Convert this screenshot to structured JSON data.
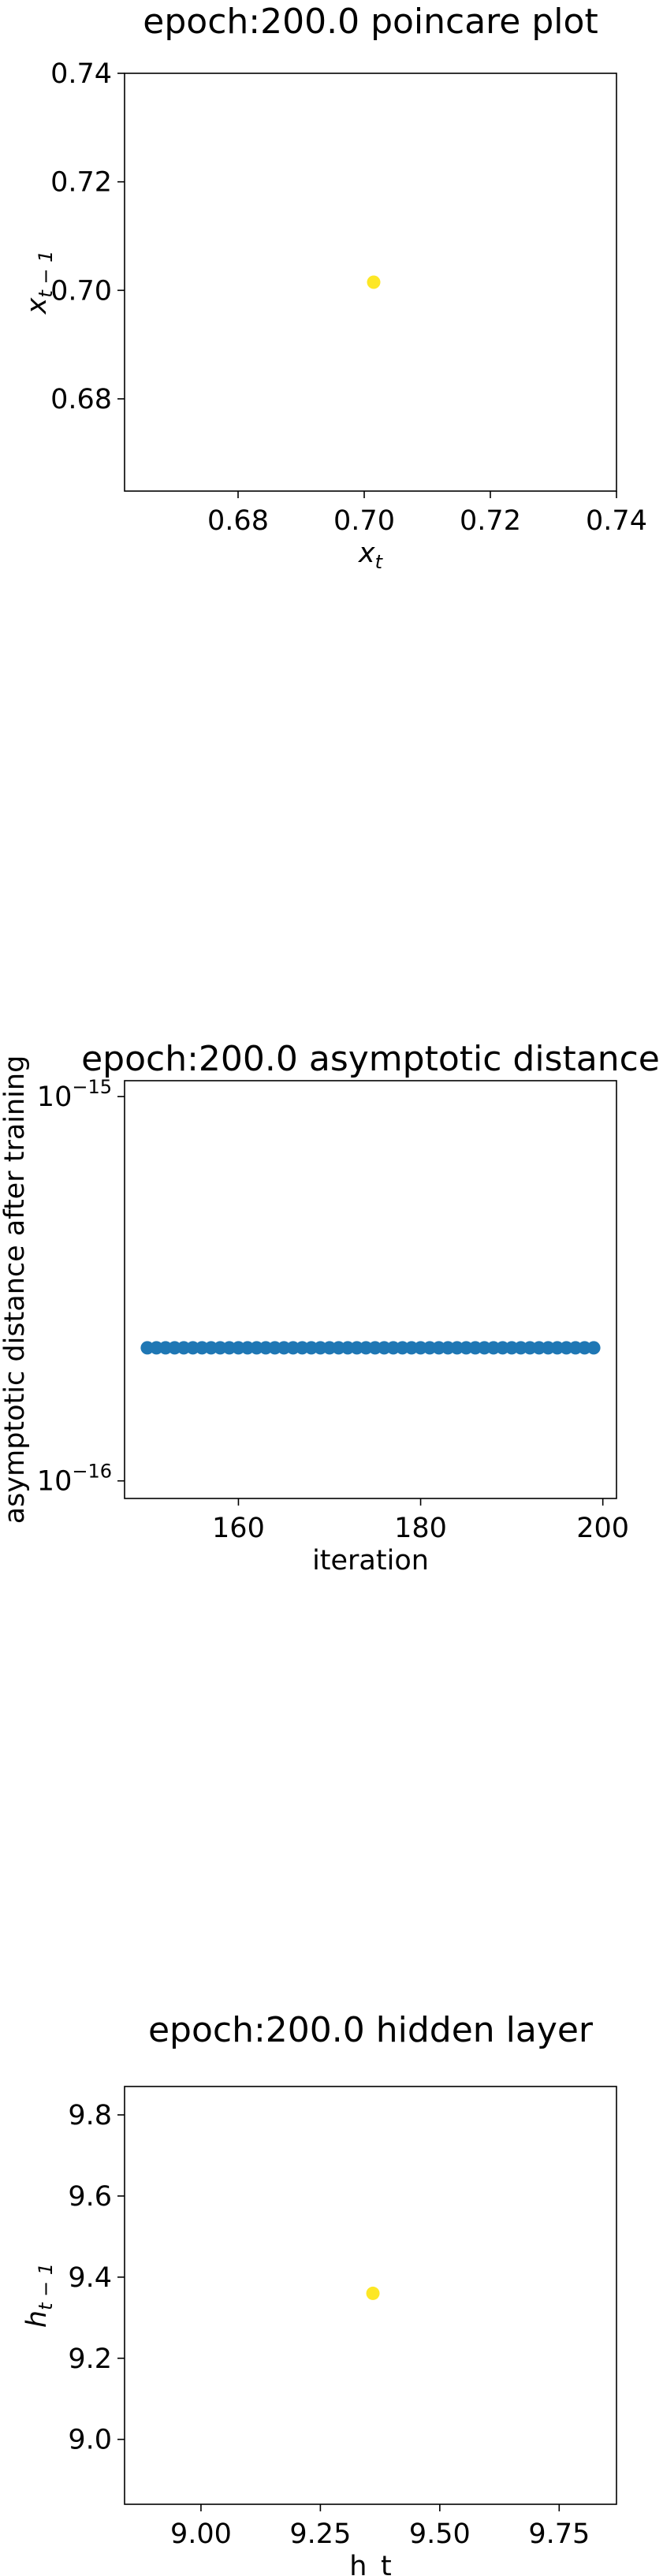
{
  "chart_data": [
    {
      "type": "scatter",
      "title": "epoch:200.0 poincare plot",
      "xlabel": "x",
      "xlabel_sub": "t",
      "ylabel": "x",
      "ylabel_sub": "t − 1",
      "xlim": [
        0.662,
        0.74
      ],
      "ylim": [
        0.663,
        0.74
      ],
      "xticks": [
        0.68,
        0.7,
        0.72,
        0.74
      ],
      "xtick_labels": [
        "0.68",
        "0.70",
        "0.72",
        "0.74"
      ],
      "yticks": [
        0.68,
        0.7,
        0.72,
        0.74
      ],
      "ytick_labels": [
        "0.68",
        "0.70",
        "0.72",
        "0.74"
      ],
      "yscale": "linear",
      "grid": false,
      "marker_color": "#fde725",
      "points": [
        {
          "x": 0.7015,
          "y": 0.7015
        }
      ]
    },
    {
      "type": "scatter",
      "title": "epoch:200.0 asymptotic distance",
      "xlabel": "iteration",
      "ylabel": "asymptotic distance after training",
      "xlim": [
        147.5,
        201.5
      ],
      "ylim": [
        9e-17,
        1.1e-15
      ],
      "yscale": "log",
      "xticks": [
        160,
        180,
        200
      ],
      "xtick_labels": [
        "160",
        "180",
        "200"
      ],
      "yticks": [
        1e-16,
        1e-15
      ],
      "ytick_labels": [
        {
          "base": "10",
          "exp": "−16"
        },
        {
          "base": "10",
          "exp": "−15"
        }
      ],
      "grid": false,
      "marker_color": "#1f77b4",
      "x_start": 150,
      "x_end": 199,
      "y_constant": 2.22e-16
    },
    {
      "type": "scatter",
      "title": "epoch:200.0 hidden layer",
      "xlabel": "h_t",
      "ylabel": "h",
      "ylabel_sub": "t − 1",
      "xlim": [
        8.84,
        9.87
      ],
      "ylim": [
        8.84,
        9.87
      ],
      "xticks": [
        9.0,
        9.25,
        9.5,
        9.75
      ],
      "xtick_labels": [
        "9.00",
        "9.25",
        "9.50",
        "9.75"
      ],
      "yticks": [
        9.0,
        9.2,
        9.4,
        9.6,
        9.8
      ],
      "ytick_labels": [
        "9.0",
        "9.2",
        "9.4",
        "9.6",
        "9.8"
      ],
      "yscale": "linear",
      "grid": false,
      "marker_color": "#fde725",
      "points": [
        {
          "x": 9.36,
          "y": 9.36
        }
      ]
    }
  ]
}
